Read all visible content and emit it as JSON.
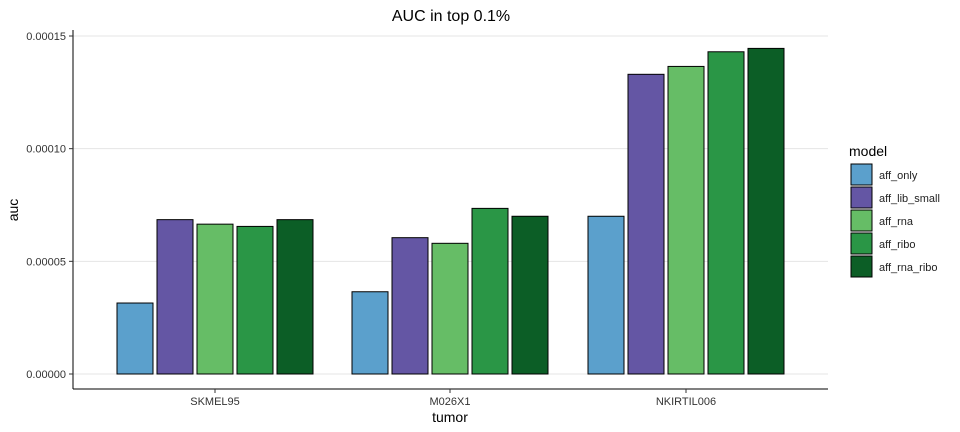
{
  "chart_data": {
    "type": "bar",
    "title": "AUC in top 0.1%",
    "xlabel": "tumor",
    "ylabel": "auc",
    "categories": [
      "SKMEL95",
      "M026X1",
      "NKIRTIL006"
    ],
    "series": [
      {
        "name": "aff_only",
        "color": "#5BA0CC",
        "values": [
          3.15e-05,
          3.65e-05,
          7e-05
        ]
      },
      {
        "name": "aff_lib_small",
        "color": "#6456A4",
        "values": [
          6.85e-05,
          6.05e-05,
          0.000133
        ]
      },
      {
        "name": "aff_rna",
        "color": "#66BD66",
        "values": [
          6.65e-05,
          5.8e-05,
          0.0001365
        ]
      },
      {
        "name": "aff_ribo",
        "color": "#2A9646",
        "values": [
          6.55e-05,
          7.35e-05,
          0.000143
        ]
      },
      {
        "name": "aff_rna_ribo",
        "color": "#0C5E26",
        "values": [
          6.85e-05,
          7e-05,
          0.0001445
        ]
      }
    ],
    "ylim": [
      0,
      0.000152
    ],
    "yticks": [
      0,
      5e-05,
      0.0001,
      0.00015
    ],
    "ytick_labels": [
      "0.00000",
      "0.00005",
      "0.00010",
      "0.00015"
    ],
    "legend_title": "model",
    "legend_position": "right",
    "grid": "horizontal major"
  }
}
